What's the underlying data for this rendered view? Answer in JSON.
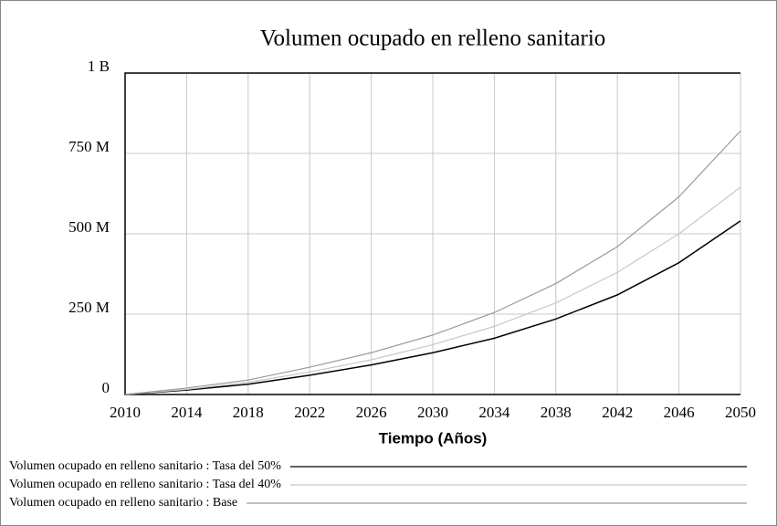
{
  "chart_data": {
    "type": "line",
    "title": "Volumen ocupado en relleno sanitario",
    "xlabel": "Tiempo (Años)",
    "x": [
      2010,
      2014,
      2018,
      2022,
      2026,
      2030,
      2034,
      2038,
      2042,
      2046,
      2050
    ],
    "xlim": [
      2010,
      2050
    ],
    "xticks": [
      2010,
      2014,
      2018,
      2022,
      2026,
      2030,
      2034,
      2038,
      2042,
      2046,
      2050
    ],
    "ylim": [
      0,
      1000000000
    ],
    "yticks": [
      0,
      {
        "value": 250000000,
        "label": "250 M"
      },
      {
        "value": 500000000,
        "label": "500 M"
      },
      {
        "value": 750000000,
        "label": "750 M"
      },
      {
        "value": 1000000000,
        "label": "1 B"
      }
    ],
    "grid": true,
    "series": [
      {
        "name": "Volumen ocupado en relleno sanitario : Tasa del 50%",
        "color": "#000000",
        "values": [
          0,
          14000000,
          32000000,
          60000000,
          92000000,
          130000000,
          175000000,
          235000000,
          310000000,
          410000000,
          540000000
        ]
      },
      {
        "name": "Volumen ocupado en relleno sanitario : Tasa del 40%",
        "color": "#c8c8c8",
        "values": [
          0,
          16000000,
          38000000,
          70000000,
          108000000,
          155000000,
          212000000,
          285000000,
          380000000,
          500000000,
          645000000
        ]
      },
      {
        "name": "Volumen ocupado en relleno sanitario : Base",
        "color": "#9a9a9a",
        "values": [
          0,
          20000000,
          45000000,
          85000000,
          130000000,
          185000000,
          255000000,
          345000000,
          460000000,
          615000000,
          820000000
        ]
      }
    ]
  }
}
